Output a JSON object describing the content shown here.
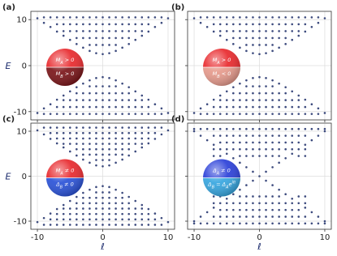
{
  "chart_data": [
    {
      "type": "scatter",
      "label": "(a)",
      "ylabel": "E",
      "color": "#3d4b7e",
      "xlim": [
        -11,
        11
      ],
      "ylim": [
        -11.8,
        11.8
      ],
      "xticks": [
        -10,
        0,
        10
      ],
      "yticks": [
        -10,
        0,
        10
      ],
      "grid": true,
      "inset": {
        "colors": [
          "#e8282c",
          "#7a1418"
        ],
        "top": [
          {
            "text": "M"
          },
          {
            "sub": "A"
          },
          {
            "text": " > 0"
          }
        ],
        "bottom": [
          {
            "text": "M"
          },
          {
            "sub": "B"
          },
          {
            "text": " > 0"
          }
        ]
      },
      "x": [
        -10,
        -9,
        -8,
        -7,
        -6,
        -5,
        -4,
        -3,
        -2,
        -1,
        0,
        1,
        2,
        3,
        4,
        5,
        6,
        7,
        8,
        9,
        10
      ],
      "values": [
        [
          10.3,
          -10.3
        ],
        [
          9.3,
          10.5,
          -9.3,
          -10.5
        ],
        [
          8.4,
          10.5,
          -8.4,
          -10.5
        ],
        [
          7.4,
          9,
          10.5,
          -7.4,
          -9,
          -10.5
        ],
        [
          6.5,
          7.5,
          9,
          10.5,
          -6.5,
          -7.5,
          -9,
          -10.5
        ],
        [
          5.6,
          7.5,
          9,
          10.5,
          -5.6,
          -7.5,
          -9,
          -10.5
        ],
        [
          4.7,
          6,
          7.5,
          9,
          10.5,
          -4.7,
          -6,
          -7.5,
          -9,
          -10.5
        ],
        [
          3.9,
          6,
          7.5,
          9,
          10.5,
          -3.9,
          -6,
          -7.5,
          -9,
          -10.5
        ],
        [
          3.2,
          4.5,
          6,
          7.5,
          9,
          10.5,
          -3.2,
          -4.5,
          -6,
          -7.5,
          -9,
          -10.5
        ],
        [
          2.7,
          4.5,
          6,
          7.5,
          9,
          10.5,
          -2.7,
          -4.5,
          -6,
          -7.5,
          -9,
          -10.5
        ],
        [
          2.5,
          4.5,
          6,
          7.5,
          9,
          10.5,
          -2.5,
          -4.5,
          -6,
          -7.5,
          -9,
          -10.5
        ],
        [
          2.7,
          4.5,
          6,
          7.5,
          9,
          10.5,
          -2.7,
          -4.5,
          -6,
          -7.5,
          -9,
          -10.5
        ],
        [
          3.2,
          4.5,
          6,
          7.5,
          9,
          10.5,
          -3.2,
          -4.5,
          -6,
          -7.5,
          -9,
          -10.5
        ],
        [
          3.9,
          6,
          7.5,
          9,
          10.5,
          -3.9,
          -6,
          -7.5,
          -9,
          -10.5
        ],
        [
          4.7,
          6,
          7.5,
          9,
          10.5,
          -4.7,
          -6,
          -7.5,
          -9,
          -10.5
        ],
        [
          5.6,
          7.5,
          9,
          10.5,
          -5.6,
          -7.5,
          -9,
          -10.5
        ],
        [
          6.5,
          7.5,
          9,
          10.5,
          -6.5,
          -7.5,
          -9,
          -10.5
        ],
        [
          7.4,
          9,
          10.5,
          -7.4,
          -9,
          -10.5
        ],
        [
          8.4,
          10.5,
          -8.4,
          -10.5
        ],
        [
          9.3,
          10.5,
          -9.3,
          -10.5
        ],
        [
          10.3,
          -10.3
        ]
      ]
    },
    {
      "type": "scatter",
      "label": "(b)",
      "color": "#3d4b7e",
      "xlim": [
        -11,
        11
      ],
      "ylim": [
        -11.8,
        11.8
      ],
      "xticks": [
        -10,
        0,
        10
      ],
      "yticks": [
        -10,
        0,
        10
      ],
      "grid": true,
      "inset": {
        "colors": [
          "#e8282c",
          "#e69a8c"
        ],
        "top": [
          {
            "text": "M"
          },
          {
            "sub": "A"
          },
          {
            "text": " > 0"
          }
        ],
        "bottom": [
          {
            "text": "M"
          },
          {
            "sub": "B"
          },
          {
            "text": " < 0"
          }
        ]
      },
      "x": [
        -10,
        -9,
        -8,
        -7,
        -6,
        -5,
        -4,
        -3,
        -2,
        -1,
        0,
        1,
        2,
        3,
        4,
        5,
        6,
        7,
        8,
        9,
        10
      ],
      "values": [
        [
          10.3,
          -10.3
        ],
        [
          9.3,
          10.5,
          -9.3,
          -10.5
        ],
        [
          8.4,
          10.5,
          -8.4,
          -10.5
        ],
        [
          7.4,
          9,
          10.5,
          -7.4,
          -9,
          -10.5
        ],
        [
          6.5,
          7.5,
          9,
          10.5,
          -6.5,
          -7.5,
          -9,
          -10.5
        ],
        [
          5.6,
          7.5,
          9,
          10.5,
          -5.6,
          -7.5,
          -9,
          -10.5
        ],
        [
          4.7,
          6,
          7.5,
          9,
          10.5,
          -4.7,
          -6,
          -7.5,
          -9,
          -10.5
        ],
        [
          3.9,
          6,
          7.5,
          9,
          10.5,
          -3.9,
          -6,
          -7.5,
          -9,
          -10.5
        ],
        [
          3.2,
          4.5,
          6,
          7.5,
          9,
          10.5,
          -3.2,
          -4.5,
          -6,
          -7.5,
          -9,
          -10.5
        ],
        [
          2.7,
          4.5,
          6,
          7.5,
          9,
          10.5,
          -2.7,
          -4.5,
          -6,
          -7.5,
          -9,
          -10.5
        ],
        [
          2.5,
          4.5,
          6,
          7.5,
          9,
          10.5,
          -2.5,
          -4.5,
          -6,
          -7.5,
          -9,
          -10.5
        ],
        [
          2.7,
          4.5,
          6,
          7.5,
          9,
          10.5,
          -2.7,
          -4.5,
          -6,
          -7.5,
          -9,
          -10.5
        ],
        [
          3.2,
          4.5,
          6,
          7.5,
          9,
          10.5,
          -3.2,
          -4.5,
          -6,
          -7.5,
          -9,
          -10.5
        ],
        [
          3.9,
          6,
          7.5,
          9,
          10.5,
          -3.9,
          -6,
          -7.5,
          -9,
          -10.5
        ],
        [
          4.7,
          6,
          7.5,
          9,
          10.5,
          -4.7,
          -6,
          -7.5,
          -9,
          -10.5
        ],
        [
          5.6,
          7.5,
          9,
          10.5,
          -5.6,
          -7.5,
          -9,
          -10.5
        ],
        [
          6.5,
          7.5,
          9,
          10.5,
          -6.5,
          -7.5,
          -9,
          -10.5
        ],
        [
          7.4,
          9,
          10.5,
          -7.4,
          -9,
          -10.5
        ],
        [
          8.4,
          10.5,
          -8.4,
          -10.5
        ],
        [
          9.3,
          10.5,
          -9.3,
          -10.5
        ],
        [
          10.3,
          -10.3
        ]
      ]
    },
    {
      "type": "scatter",
      "label": "(c)",
      "ylabel": "E",
      "xlabel": "ℓ",
      "color": "#3d4b7e",
      "xlim": [
        -11,
        11
      ],
      "ylim": [
        -11.8,
        11.8
      ],
      "xticks": [
        -10,
        0,
        10
      ],
      "yticks": [
        -10,
        0,
        10
      ],
      "grid": true,
      "inset": {
        "colors": [
          "#e8282c",
          "#2a52d8"
        ],
        "top": [
          {
            "text": "M"
          },
          {
            "sub": "A"
          },
          {
            "text": " ≠ 0"
          }
        ],
        "bottom": [
          {
            "text": "Δ"
          },
          {
            "sub": "B"
          },
          {
            "text": " ≠ 0"
          }
        ]
      },
      "x": [
        -10,
        -9,
        -8,
        -7,
        -6,
        -5,
        -4,
        -3,
        -2,
        -1,
        0,
        1,
        2,
        3,
        4,
        5,
        6,
        7,
        8,
        9,
        10
      ],
      "values": [
        [
          10.2,
          -10.2
        ],
        [
          9.3,
          10.8,
          -9.3,
          -10.8
        ],
        [
          8.3,
          9.6,
          10.8,
          -8.3,
          -9.6,
          -10.8
        ],
        [
          7.3,
          8.4,
          9.6,
          10.8,
          -7.3,
          -8.4,
          -9.6,
          -10.8
        ],
        [
          6.4,
          7.2,
          8.4,
          9.6,
          10.8,
          -6.4,
          -7.2,
          -8.4,
          -9.6,
          -10.8
        ],
        [
          5.5,
          7.2,
          8.4,
          9.6,
          10.8,
          -5.5,
          -7.2,
          -8.4,
          -9.6,
          -10.8
        ],
        [
          4.6,
          6,
          7.2,
          8.4,
          9.6,
          10.8,
          -4.6,
          -6,
          -7.2,
          -8.4,
          -9.6,
          -10.8
        ],
        [
          3.7,
          4.8,
          6,
          7.2,
          8.4,
          9.6,
          10.8,
          -3.7,
          -4.8,
          -6,
          -7.2,
          -8.4,
          -9.6,
          -10.8
        ],
        [
          3,
          4.8,
          6,
          7.2,
          8.4,
          9.6,
          10.8,
          -3,
          -4.8,
          -6,
          -7.2,
          -8.4,
          -9.6,
          -10.8
        ],
        [
          2.4,
          3.6,
          4.8,
          6,
          7.2,
          8.4,
          9.6,
          10.8,
          -2.4,
          -3.6,
          -4.8,
          -6,
          -7.2,
          -8.4,
          -9.6,
          -10.8
        ],
        [
          2.2,
          3.6,
          4.8,
          6,
          7.2,
          8.4,
          9.6,
          10.8,
          -2.2,
          -3.6,
          -4.8,
          -6,
          -7.2,
          -8.4,
          -9.6,
          -10.8
        ],
        [
          2.4,
          3.6,
          4.8,
          6,
          7.2,
          8.4,
          9.6,
          10.8,
          -2.4,
          -3.6,
          -4.8,
          -6,
          -7.2,
          -8.4,
          -9.6,
          -10.8
        ],
        [
          3,
          4.8,
          6,
          7.2,
          8.4,
          9.6,
          10.8,
          -3,
          -4.8,
          -6,
          -7.2,
          -8.4,
          -9.6,
          -10.8
        ],
        [
          3.7,
          4.8,
          6,
          7.2,
          8.4,
          9.6,
          10.8,
          -3.7,
          -4.8,
          -6,
          -7.2,
          -8.4,
          -9.6,
          -10.8
        ],
        [
          4.6,
          6,
          7.2,
          8.4,
          9.6,
          10.8,
          -4.6,
          -6,
          -7.2,
          -8.4,
          -9.6,
          -10.8
        ],
        [
          5.5,
          7.2,
          8.4,
          9.6,
          10.8,
          -5.5,
          -7.2,
          -8.4,
          -9.6,
          -10.8
        ],
        [
          6.4,
          7.2,
          8.4,
          9.6,
          10.8,
          -6.4,
          -7.2,
          -8.4,
          -9.6,
          -10.8
        ],
        [
          7.3,
          8.4,
          9.6,
          10.8,
          -7.3,
          -8.4,
          -9.6,
          -10.8
        ],
        [
          8.3,
          9.6,
          10.8,
          -8.3,
          -9.6,
          -10.8
        ],
        [
          9.3,
          10.8,
          -9.3,
          -10.8
        ],
        [
          10.2,
          -10.2
        ]
      ]
    },
    {
      "type": "scatter",
      "label": "(d)",
      "xlabel": "ℓ",
      "color": "#3d4b7e",
      "xlim": [
        -11,
        11
      ],
      "ylim": [
        -11.8,
        11.8
      ],
      "xticks": [
        -10,
        0,
        10
      ],
      "yticks": [
        -10,
        0,
        10
      ],
      "grid": true,
      "inset": {
        "colors": [
          "#2a3fd8",
          "#36a6e0"
        ],
        "top": [
          {
            "text": "Δ"
          },
          {
            "sub": "A"
          },
          {
            "text": " ≠ 0"
          }
        ],
        "bottom": [
          {
            "text": "Δ"
          },
          {
            "sub": "B"
          },
          {
            "text": " = Δ"
          },
          {
            "sub": "A"
          },
          {
            "text": "e"
          },
          {
            "sup": "iπ"
          }
        ]
      },
      "x": [
        -10,
        -9,
        -8,
        -7,
        -6,
        -5,
        -4,
        -3,
        -2,
        -1,
        0,
        1,
        2,
        3,
        4,
        5,
        6,
        7,
        8,
        9,
        10
      ],
      "values": [
        [
          10,
          10.5,
          -10,
          -10.5
        ],
        [
          9,
          10.5,
          -9,
          -10.5
        ],
        [
          8,
          10.5,
          -8,
          -10.5
        ],
        [
          7,
          4.5,
          6,
          9,
          10.5,
          -7,
          -4.5,
          -6,
          -9,
          -10.5
        ],
        [
          6,
          4.5,
          7.5,
          9,
          10.5,
          -6,
          -4.5,
          -7.5,
          -9,
          -10.5
        ],
        [
          5,
          6,
          7.5,
          9,
          10.5,
          -5,
          -6,
          -7.5,
          -9,
          -10.5
        ],
        [
          4,
          6,
          7.5,
          9,
          10.5,
          -4,
          -6,
          -7.5,
          -9,
          -10.5
        ],
        [
          3,
          4.5,
          6,
          7.5,
          9,
          10.5,
          -3,
          -4.5,
          -6,
          -7.5,
          -9,
          -10.5
        ],
        [
          2,
          4.5,
          6,
          7.5,
          9,
          10.5,
          -2,
          -4.5,
          -6,
          -7.5,
          -9,
          -10.5
        ],
        [
          1,
          4.5,
          6,
          7.5,
          9,
          10.5,
          -1,
          -4.5,
          -6,
          -7.5,
          -9,
          -10.5
        ],
        [
          0,
          4.5,
          6,
          7.5,
          9,
          10.5,
          -4.5,
          -6,
          -7.5,
          -9,
          -10.5
        ],
        [
          1,
          4.5,
          6,
          7.5,
          9,
          10.5,
          -1,
          -4.5,
          -6,
          -7.5,
          -9,
          -10.5
        ],
        [
          2,
          4.5,
          6,
          7.5,
          9,
          10.5,
          -2,
          -4.5,
          -6,
          -7.5,
          -9,
          -10.5
        ],
        [
          3,
          4.5,
          6,
          7.5,
          9,
          10.5,
          -3,
          -4.5,
          -6,
          -7.5,
          -9,
          -10.5
        ],
        [
          4,
          6,
          7.5,
          9,
          10.5,
          -4,
          -6,
          -7.5,
          -9,
          -10.5
        ],
        [
          5,
          6,
          7.5,
          9,
          10.5,
          -5,
          -6,
          -7.5,
          -9,
          -10.5
        ],
        [
          6,
          4.5,
          7.5,
          9,
          10.5,
          -6,
          -4.5,
          -7.5,
          -9,
          -10.5
        ],
        [
          7,
          4.5,
          6,
          9,
          10.5,
          -7,
          -4.5,
          -6,
          -9,
          -10.5
        ],
        [
          8,
          10.5,
          -8,
          -10.5
        ],
        [
          9,
          10.5,
          -9,
          -10.5
        ],
        [
          10,
          10.5,
          -10,
          -10.5
        ]
      ]
    }
  ]
}
